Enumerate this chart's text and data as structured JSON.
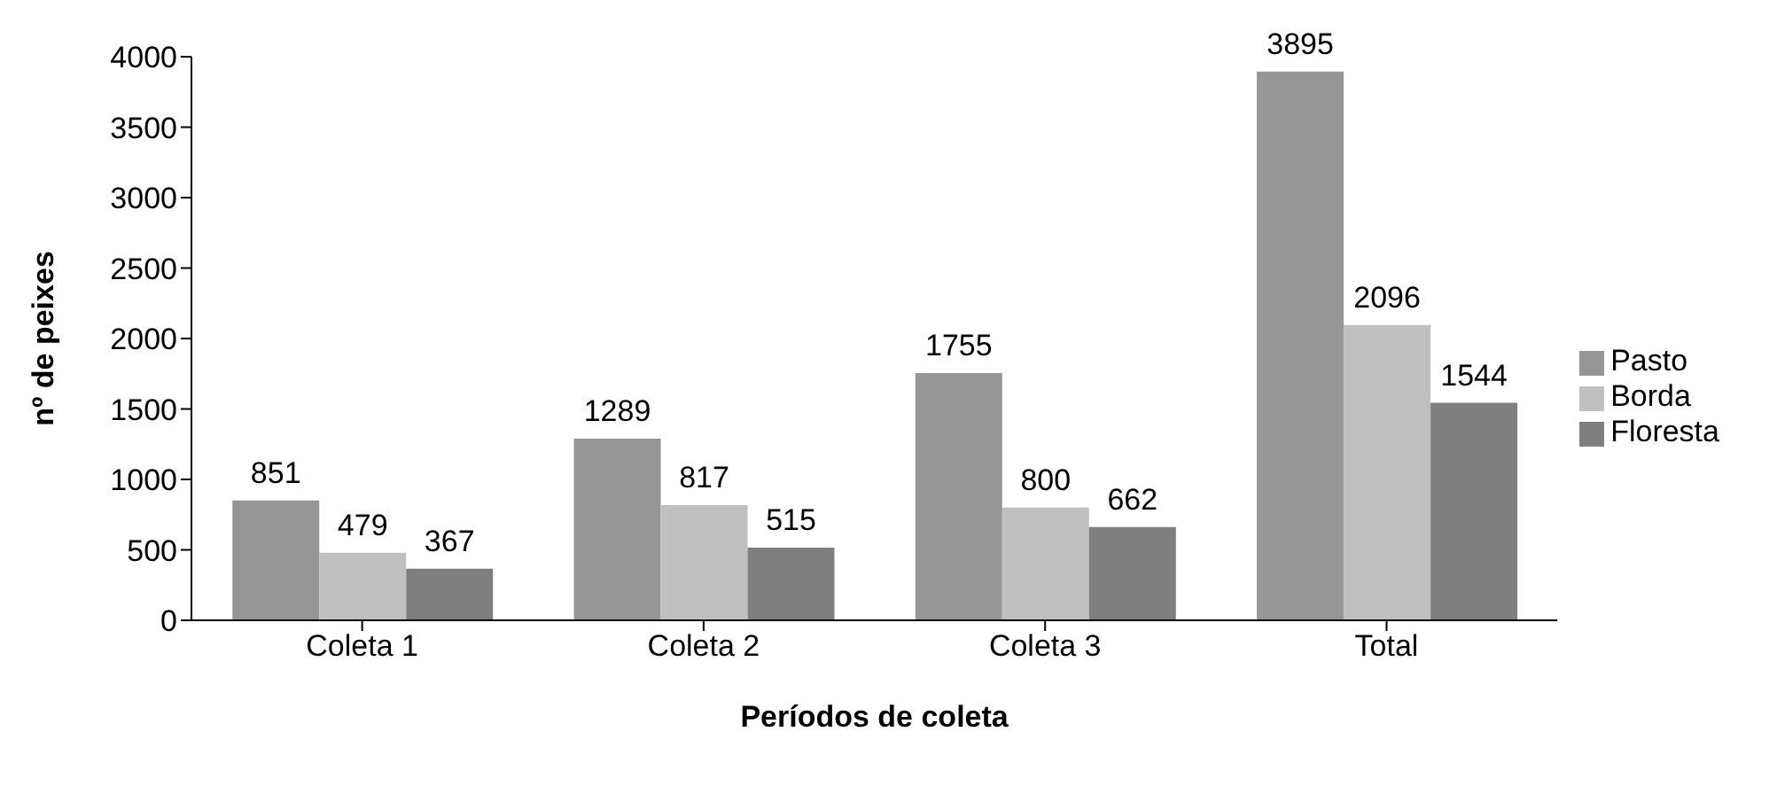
{
  "chart_data": {
    "type": "bar",
    "xlabel": "Períodos de coleta",
    "ylabel": "nº de peixes",
    "categories": [
      "Coleta 1",
      "Coleta 2",
      "Coleta 3",
      "Total"
    ],
    "series": [
      {
        "name": "Pasto",
        "color": "#969696",
        "values": [
          851,
          1289,
          1755,
          3895
        ]
      },
      {
        "name": "Borda",
        "color": "#c0c0c0",
        "values": [
          479,
          817,
          800,
          2096
        ]
      },
      {
        "name": "Floresta",
        "color": "#7f7f7f",
        "values": [
          367,
          515,
          662,
          1544
        ]
      }
    ],
    "ylim": [
      0,
      4000
    ],
    "yticks": [
      0,
      500,
      1000,
      1500,
      2000,
      2500,
      3000,
      3500,
      4000
    ],
    "grid": false,
    "legend": "right",
    "data_labels": true
  }
}
